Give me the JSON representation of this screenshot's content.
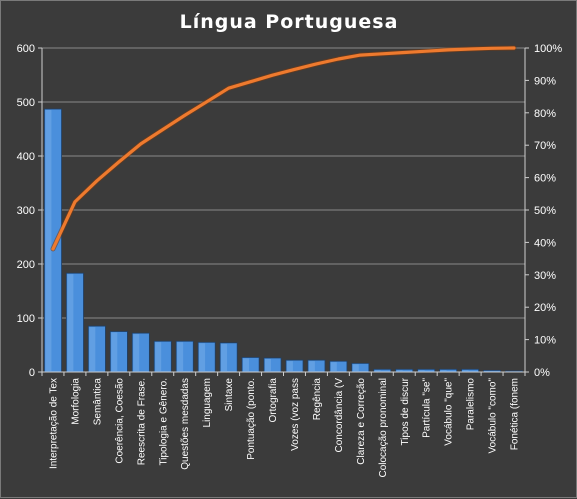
{
  "chart_data": {
    "type": "bar",
    "title": "Língua Portuguesa",
    "categories": [
      "Interpretação de Tex",
      "Morfologia",
      "Semântica",
      "Coerência, Coesão",
      "Reescrita de Frase.",
      "Tipologia e Gênero.",
      "Questões mesdadas",
      "Linguagem",
      "Sintaxe",
      "Pontuação (ponto.",
      "Ortografia",
      "Vozes (voz pass",
      "Regência",
      "Concordância (V",
      "Clareza e Correção",
      "Colocação pronominal",
      "Tipos de discur",
      "Partícula \"se\"",
      "Vocábulo \"que\"",
      "Paralelismo",
      "Vocábulo \"como\"",
      "Fonética (fonem"
    ],
    "series": [
      {
        "type": "bar",
        "axis": "left",
        "color": "#4a8fdc",
        "values": [
          487,
          183,
          85,
          75,
          72,
          57,
          57,
          55,
          54,
          27,
          26,
          22,
          22,
          20,
          16,
          5,
          5,
          5,
          5,
          5,
          3,
          2
        ]
      },
      {
        "type": "line",
        "axis": "right",
        "color": "#ee7a2e",
        "values": [
          0.38,
          0.525,
          0.59,
          0.648,
          0.704,
          0.748,
          0.792,
          0.834,
          0.876,
          0.896,
          0.916,
          0.934,
          0.951,
          0.966,
          0.978,
          0.982,
          0.986,
          0.99,
          0.994,
          0.997,
          0.999,
          1.0
        ]
      }
    ],
    "y_left": {
      "min": 0,
      "max": 600,
      "ticks": [
        0,
        100,
        200,
        300,
        400,
        500,
        600
      ],
      "tick_labels": [
        "0",
        "100",
        "200",
        "300",
        "400",
        "500",
        "600"
      ]
    },
    "y_right": {
      "min": 0,
      "max": 1,
      "ticks": [
        0,
        0.1,
        0.2,
        0.3,
        0.4,
        0.5,
        0.6,
        0.7,
        0.8,
        0.9,
        1.0
      ],
      "tick_labels": [
        "0%",
        "10%",
        "20%",
        "30%",
        "40%",
        "50%",
        "60%",
        "70%",
        "80%",
        "90%",
        "100%"
      ]
    },
    "grid": "horizontal",
    "legend": "none"
  }
}
